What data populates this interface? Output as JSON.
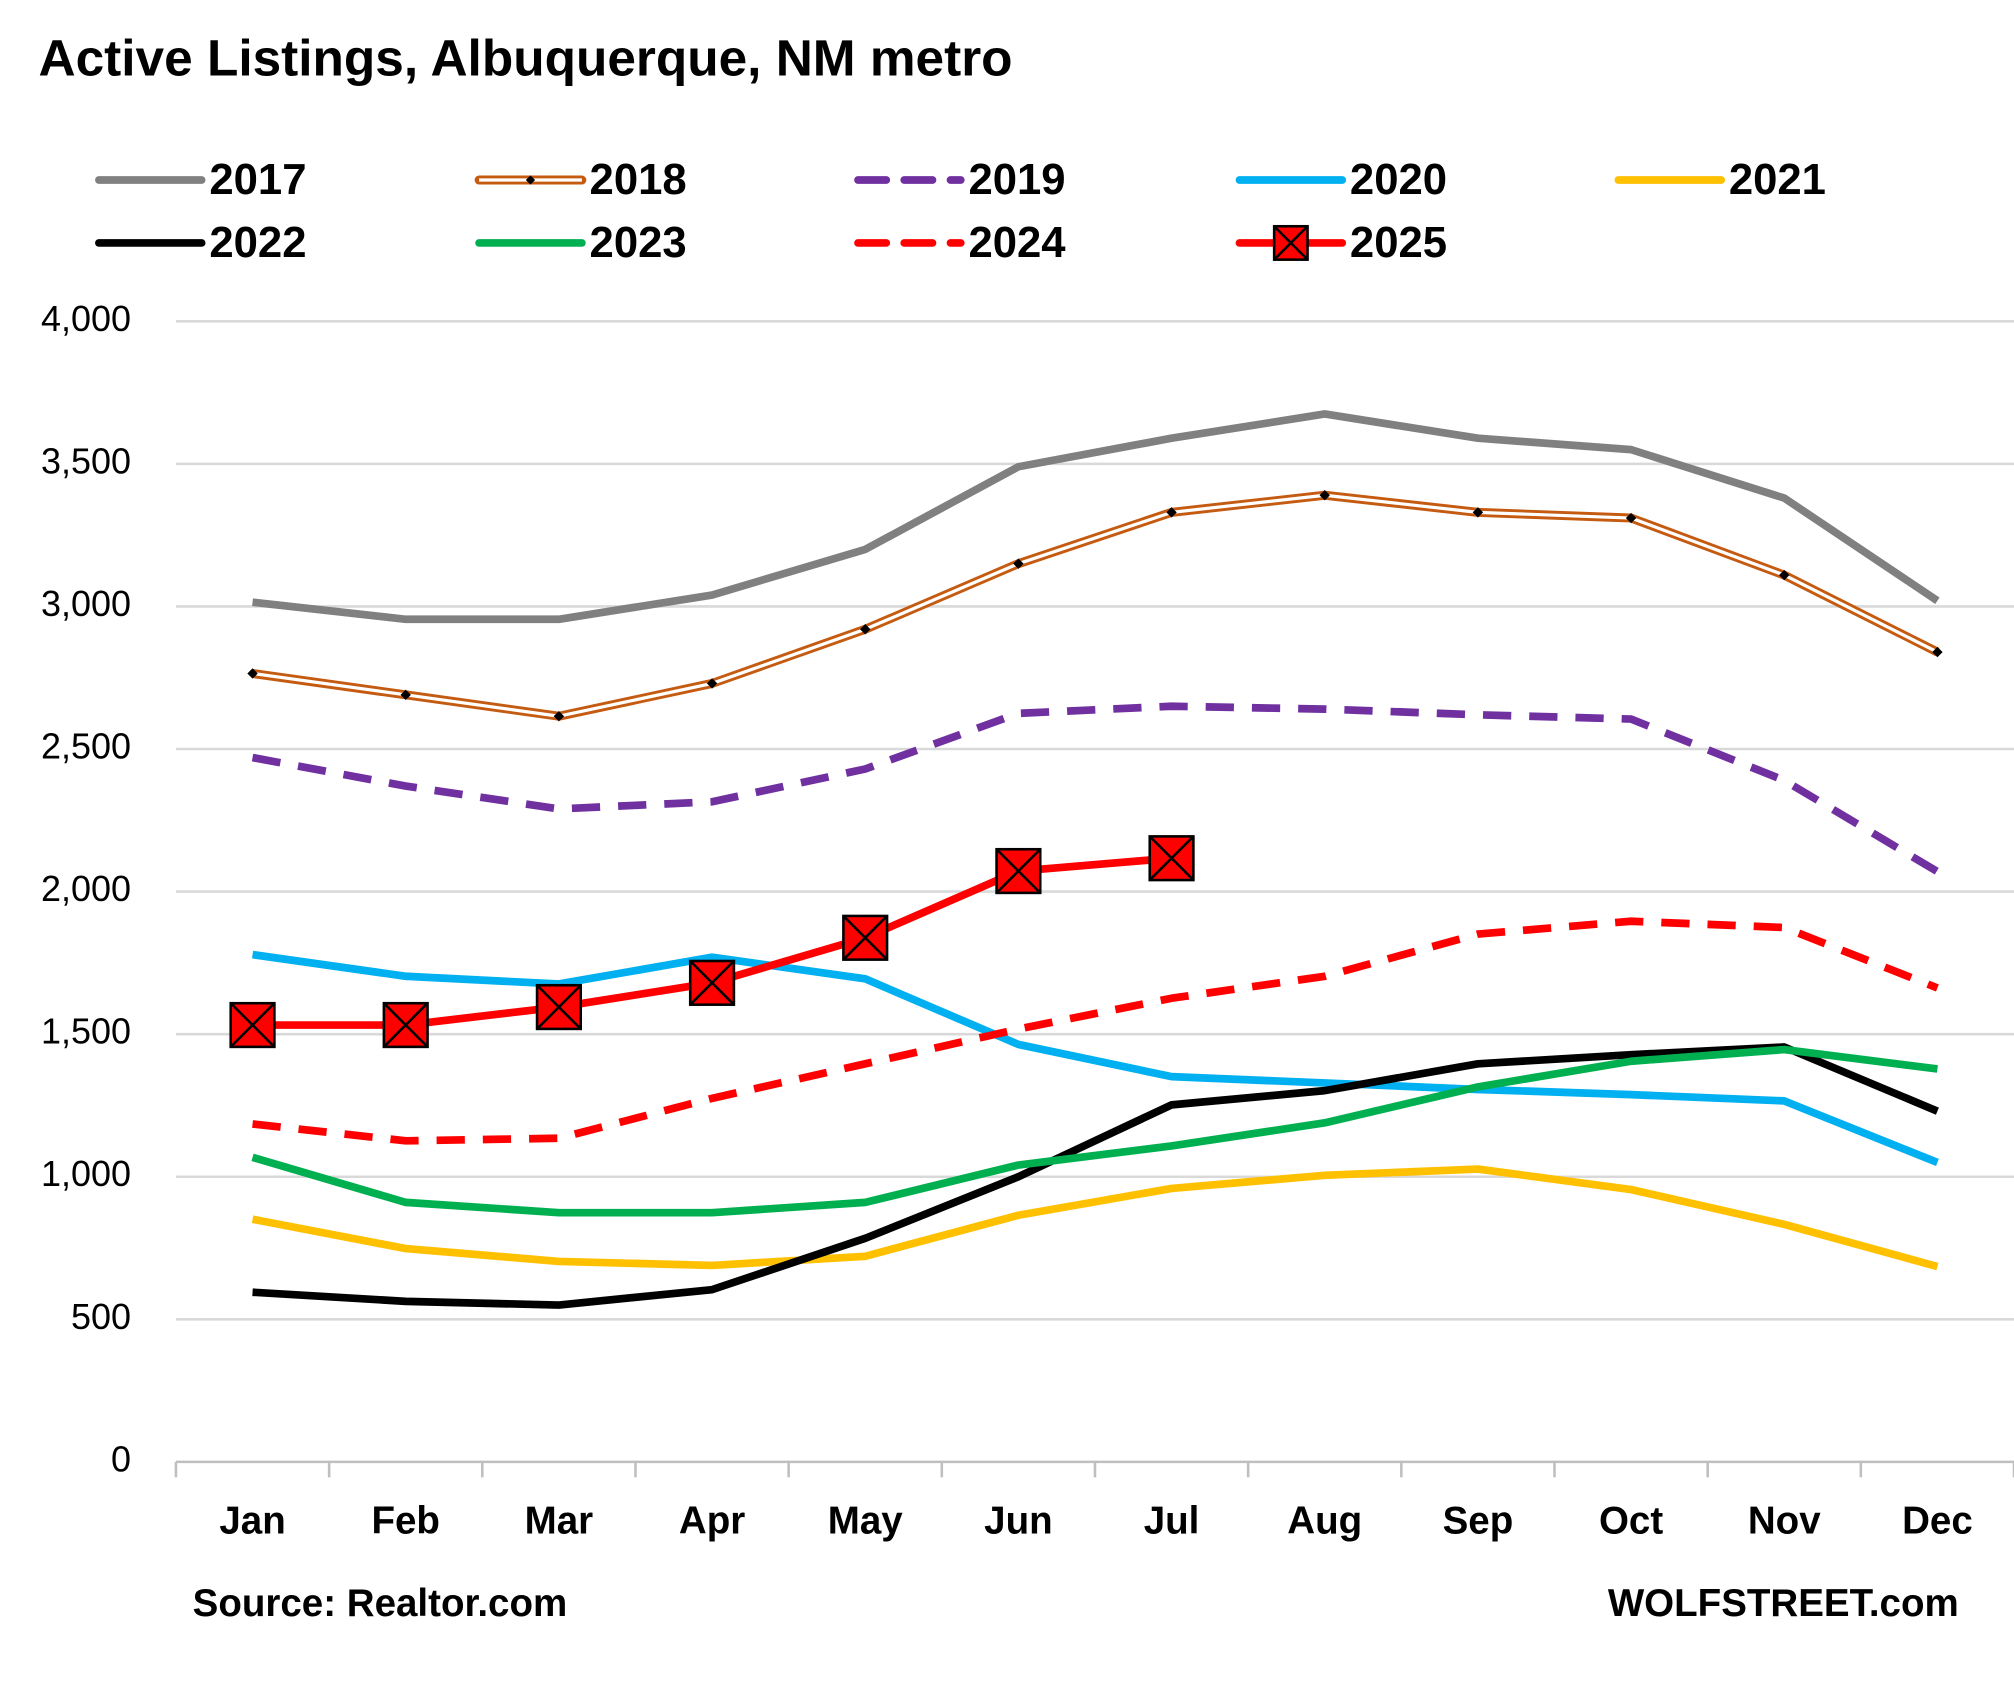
{
  "chart_data": {
    "type": "line",
    "title": "Active Listings, Albuquerque, NM metro",
    "source": "Source: Realtor.com",
    "credit": "WOLFSTREET.com",
    "categories": [
      "Jan",
      "Feb",
      "Mar",
      "Apr",
      "May",
      "Jun",
      "Jul",
      "Aug",
      "Sep",
      "Oct",
      "Nov",
      "Dec"
    ],
    "ylim": [
      0,
      4000
    ],
    "yticks": [
      0,
      500,
      {
        "value": 1000,
        "label": "1,000"
      },
      {
        "value": 1500,
        "label": "1,500"
      },
      {
        "value": 2000,
        "label": "2,000"
      },
      {
        "value": 2500,
        "label": "2,500"
      },
      {
        "value": 3000,
        "label": "3,000"
      },
      {
        "value": 3500,
        "label": "3,500"
      },
      {
        "value": 4000,
        "label": "4,000"
      }
    ],
    "grid": true,
    "legend": "top",
    "series": [
      {
        "name": "2017",
        "color": "#808080",
        "style": "solid",
        "values": [
          3015,
          2955,
          2955,
          3040,
          3200,
          3490,
          3590,
          3675,
          3590,
          3550,
          3380,
          3020
        ]
      },
      {
        "name": "2018",
        "color": "#c55a11",
        "style": "double",
        "marker": "diamond",
        "values": [
          2765,
          2690,
          2615,
          2730,
          2920,
          3150,
          3330,
          3390,
          3330,
          3310,
          3110,
          2840
        ]
      },
      {
        "name": "2019",
        "color": "#7030a0",
        "style": "dashed",
        "values": [
          2470,
          2370,
          2290,
          2315,
          2430,
          2625,
          2650,
          2640,
          2620,
          2605,
          2390,
          2070
        ]
      },
      {
        "name": "2020",
        "color": "#00b0f0",
        "style": "solid",
        "values": [
          1779,
          1703,
          1676,
          1770,
          1694,
          1464,
          1351,
          1329,
          1306,
          1288,
          1266,
          1050
        ]
      },
      {
        "name": "2021",
        "color": "#ffc000",
        "style": "solid",
        "values": [
          851,
          748,
          703,
          689,
          721,
          865,
          959,
          1005,
          1027,
          955,
          833,
          685
        ]
      },
      {
        "name": "2022",
        "color": "#000000",
        "style": "solid",
        "values": [
          595,
          563,
          550,
          604,
          784,
          1000,
          1252,
          1302,
          1396,
          1428,
          1455,
          1230
        ]
      },
      {
        "name": "2023",
        "color": "#00b050",
        "style": "solid",
        "values": [
          1068,
          910,
          874,
          874,
          910,
          1041,
          1108,
          1189,
          1315,
          1405,
          1446,
          1378
        ]
      },
      {
        "name": "2024",
        "color": "#ff0000",
        "style": "dashed",
        "values": [
          1185,
          1126,
          1135,
          1275,
          1396,
          1518,
          1626,
          1703,
          1851,
          1896,
          1874,
          1662
        ]
      },
      {
        "name": "2025",
        "color": "#ff0000",
        "style": "solid",
        "marker": "xsquare",
        "values": [
          1532,
          1532,
          1595,
          1680,
          1838,
          2072,
          2117,
          null,
          null,
          null,
          null,
          null
        ]
      }
    ]
  }
}
